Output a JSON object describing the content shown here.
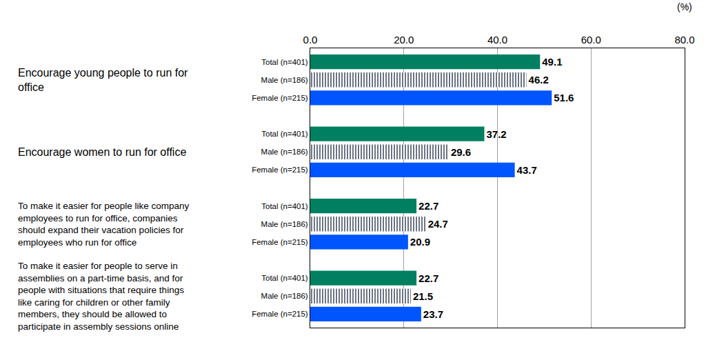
{
  "chart_data": {
    "type": "bar",
    "orientation": "horizontal",
    "xlabel": "(%)",
    "categories": [
      "Encourage young people to run for office",
      "Encourage women to run for office",
      "To make it easier for people like company employees to run for office, companies should expand their vacation policies for employees who run for office",
      "To make it easier for people to serve in assemblies on a part-time basis, and for people with situations that require things like caring for children or other family members, they should be allowed to participate in assembly sessions online"
    ],
    "series": [
      {
        "name": "Total (n=401)",
        "color": "#008060",
        "values": [
          49.1,
          37.2,
          22.7,
          22.7
        ]
      },
      {
        "name": "Male (n=186)",
        "color": "#5a6478",
        "marker": "hatched",
        "values": [
          46.2,
          29.6,
          24.7,
          21.5
        ]
      },
      {
        "name": "Female (n=215)",
        "color": "#0055ff",
        "values": [
          51.6,
          43.7,
          20.9,
          23.7
        ]
      }
    ],
    "xlim": [
      0,
      80
    ],
    "xticks": [
      {
        "value": 0,
        "label": "0.0"
      },
      {
        "value": 20,
        "label": "20.0"
      },
      {
        "value": 40,
        "label": "40.0"
      },
      {
        "value": 60,
        "label": "60.0"
      },
      {
        "value": 80,
        "label": "80.0"
      }
    ],
    "grid": true,
    "data_labels": true
  }
}
